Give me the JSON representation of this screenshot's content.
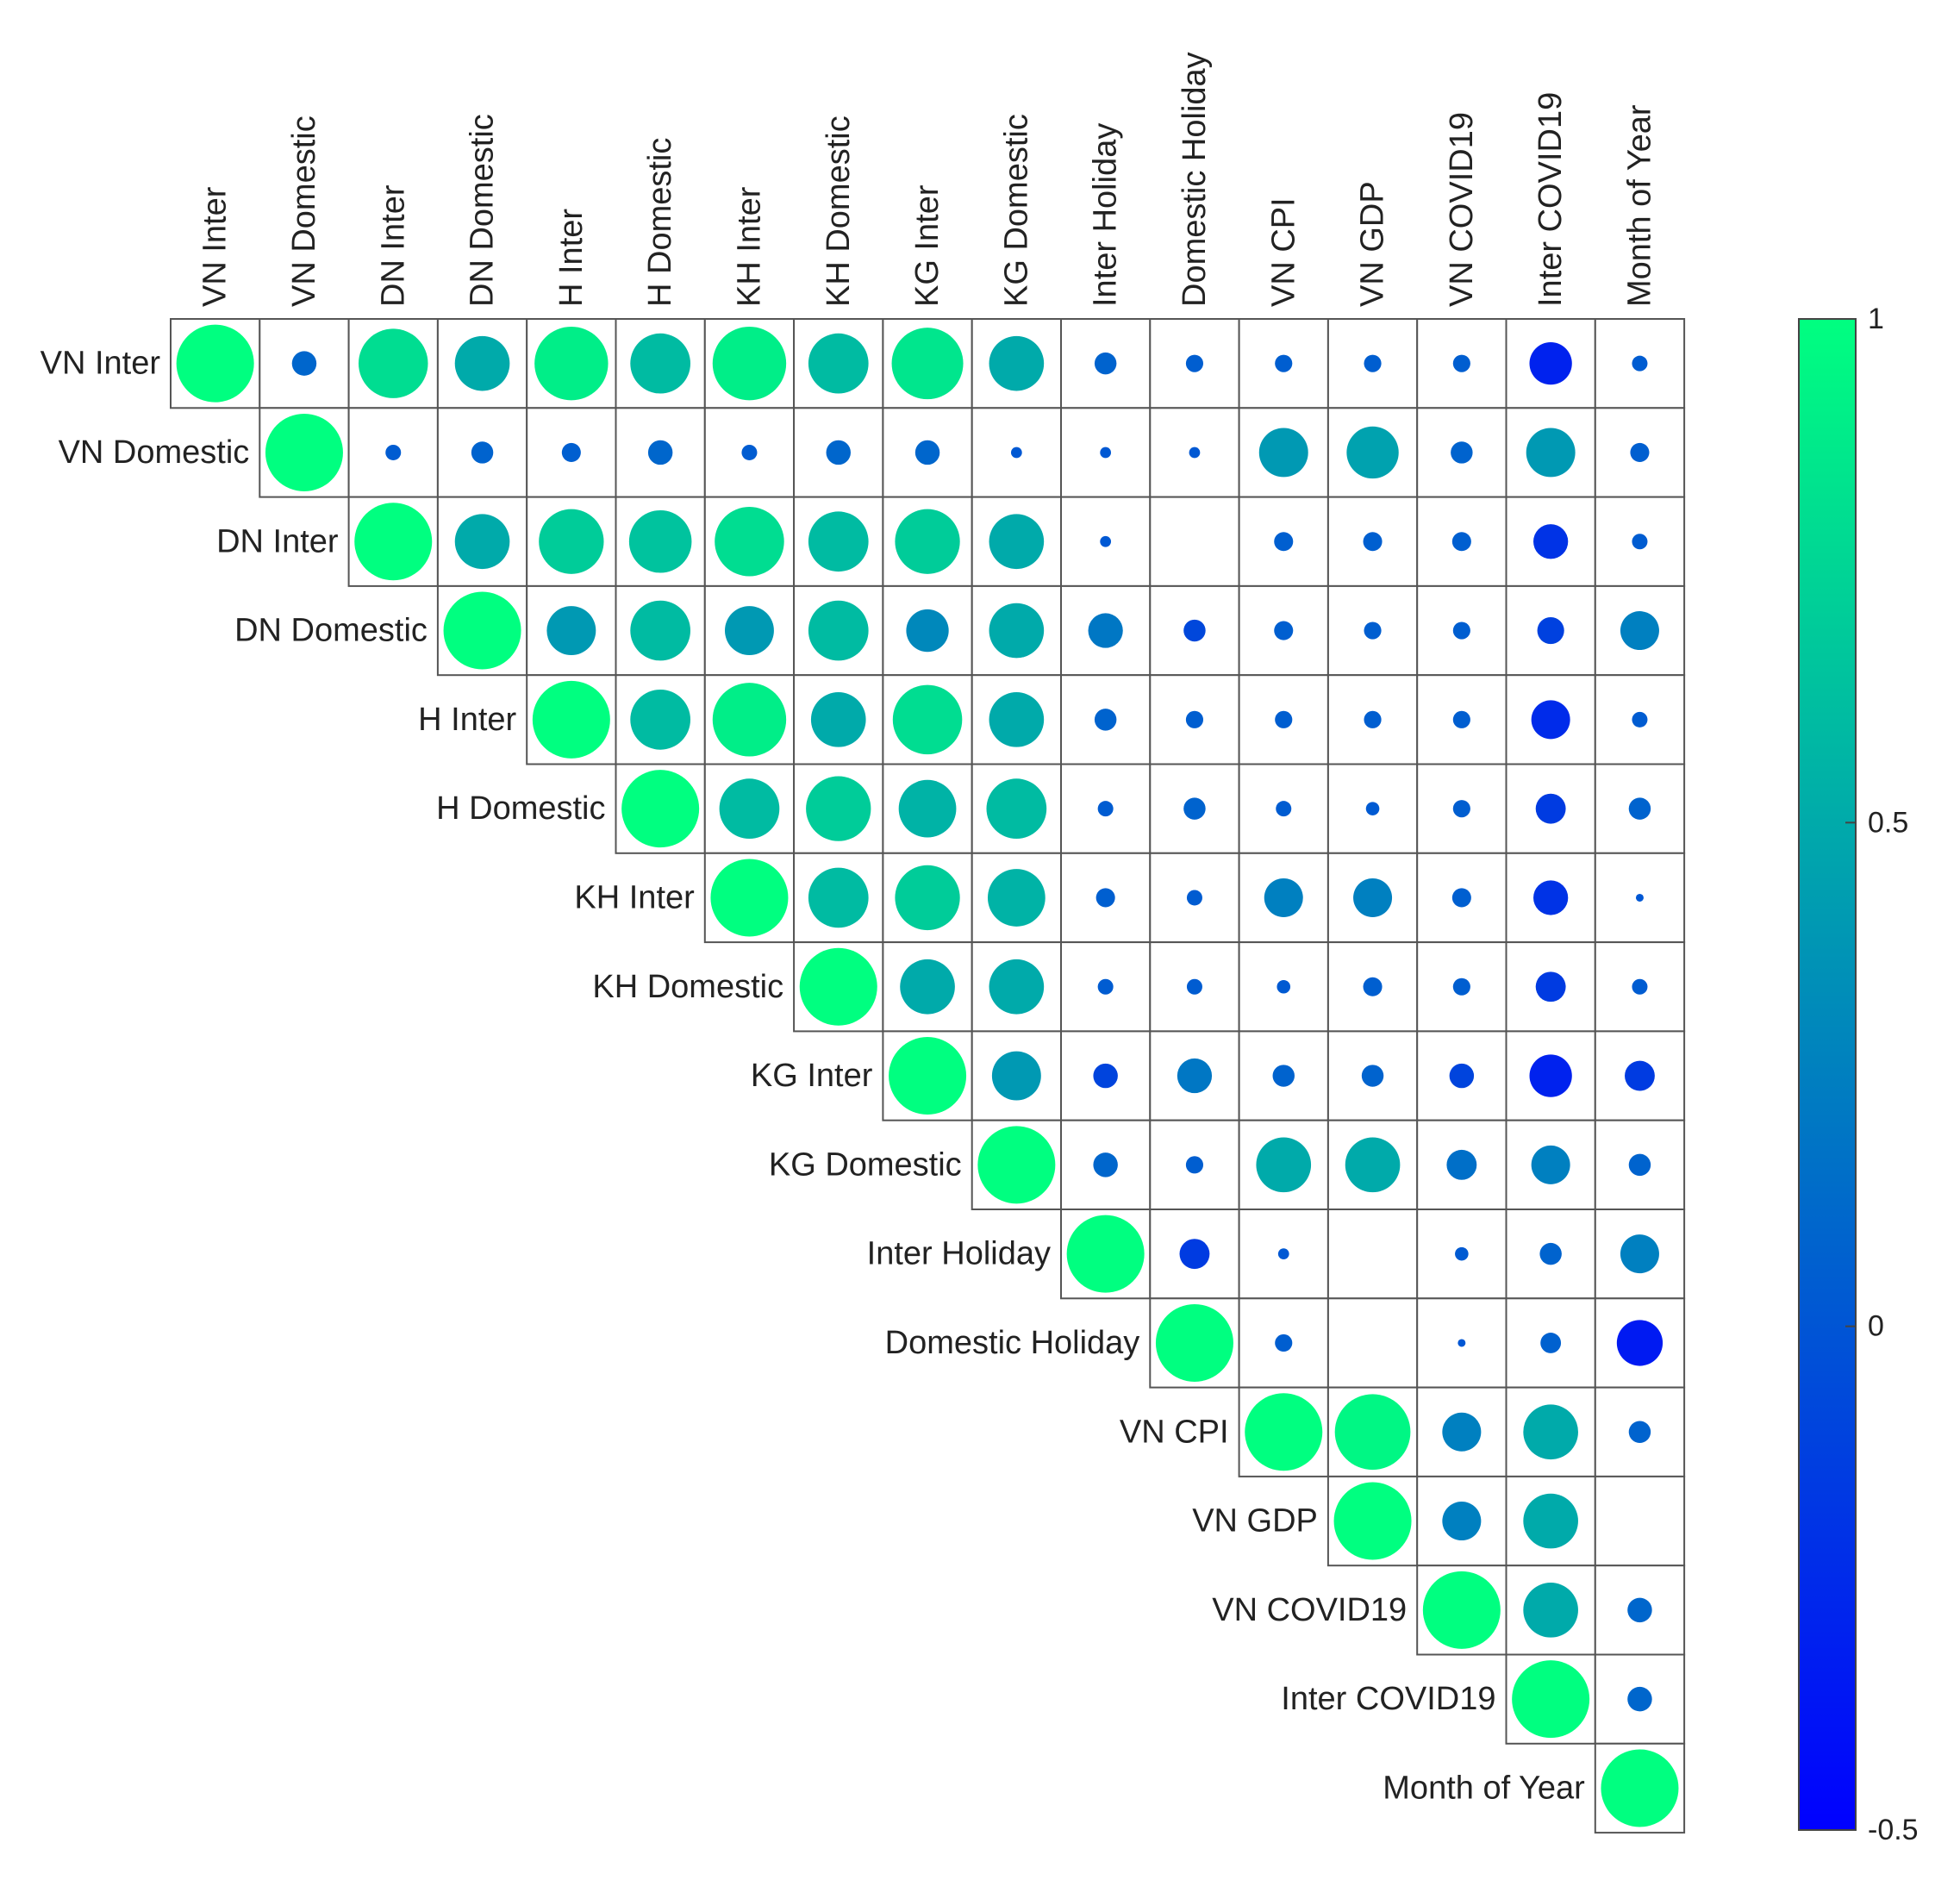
{
  "chart_data": {
    "type": "heatmap",
    "subtype": "upper-triangular correlation plot with sized circles",
    "variables": [
      "VN Inter",
      "VN Domestic",
      "DN Inter",
      "DN Domestic",
      "H Inter",
      "H Domestic",
      "KH Inter",
      "KH Domestic",
      "KG Inter",
      "KG Domestic",
      "Inter Holiday",
      "Domestic Holiday",
      "VN CPI",
      "VN GDP",
      "VN COVID19",
      "Inter COVID19",
      "Month of Year"
    ],
    "matrix": [
      [
        1.0,
        0.1,
        0.8,
        0.5,
        0.9,
        0.6,
        0.9,
        0.6,
        0.85,
        0.5,
        0.08,
        0.05,
        0.05,
        0.05,
        0.05,
        -0.3,
        0.04
      ],
      [
        null,
        1.0,
        0.04,
        0.08,
        0.06,
        0.1,
        0.04,
        0.1,
        0.1,
        0.02,
        0.02,
        0.02,
        0.4,
        0.45,
        0.08,
        0.4,
        0.06
      ],
      [
        null,
        null,
        1.0,
        0.5,
        0.7,
        0.65,
        0.8,
        0.6,
        0.7,
        0.5,
        0.02,
        0.0,
        0.06,
        0.06,
        0.06,
        -0.2,
        0.04
      ],
      [
        null,
        null,
        null,
        1.0,
        0.4,
        0.6,
        0.4,
        0.6,
        0.3,
        0.5,
        0.2,
        -0.08,
        0.06,
        0.05,
        0.05,
        -0.12,
        0.25
      ],
      [
        null,
        null,
        null,
        null,
        1.0,
        0.6,
        0.9,
        0.5,
        0.8,
        0.5,
        0.08,
        0.05,
        0.05,
        0.05,
        0.05,
        -0.25,
        0.04
      ],
      [
        null,
        null,
        null,
        null,
        null,
        1.0,
        0.6,
        0.7,
        0.55,
        0.6,
        0.04,
        0.08,
        0.04,
        0.03,
        0.05,
        -0.15,
        0.08
      ],
      [
        null,
        null,
        null,
        null,
        null,
        null,
        1.0,
        0.6,
        0.7,
        0.55,
        0.06,
        0.04,
        0.25,
        0.25,
        0.06,
        -0.2,
        0.01
      ],
      [
        null,
        null,
        null,
        null,
        null,
        null,
        null,
        1.0,
        0.5,
        0.5,
        0.04,
        0.04,
        0.03,
        0.06,
        0.05,
        -0.15,
        0.04
      ],
      [
        null,
        null,
        null,
        null,
        null,
        null,
        null,
        null,
        1.0,
        0.4,
        -0.1,
        0.2,
        0.08,
        0.08,
        -0.1,
        -0.3,
        -0.15
      ],
      [
        null,
        null,
        null,
        null,
        null,
        null,
        null,
        null,
        null,
        1.0,
        0.1,
        0.05,
        0.5,
        0.5,
        0.15,
        0.25,
        0.08
      ],
      [
        null,
        null,
        null,
        null,
        null,
        null,
        null,
        null,
        null,
        null,
        1.0,
        -0.15,
        0.02,
        null,
        0.03,
        0.08,
        0.25
      ],
      [
        null,
        null,
        null,
        null,
        null,
        null,
        null,
        null,
        null,
        null,
        null,
        1.0,
        0.05,
        null,
        0.01,
        0.07,
        -0.35
      ],
      [
        null,
        null,
        null,
        null,
        null,
        null,
        null,
        null,
        null,
        null,
        null,
        null,
        1.0,
        0.95,
        0.25,
        0.5,
        0.08
      ],
      [
        null,
        null,
        null,
        null,
        null,
        null,
        null,
        null,
        null,
        null,
        null,
        null,
        null,
        1.0,
        0.25,
        0.5,
        null
      ],
      [
        null,
        null,
        null,
        null,
        null,
        null,
        null,
        null,
        null,
        null,
        null,
        null,
        null,
        null,
        1.0,
        0.5,
        0.1
      ],
      [
        null,
        null,
        null,
        null,
        null,
        null,
        null,
        null,
        null,
        null,
        null,
        null,
        null,
        null,
        null,
        1.0,
        0.1
      ],
      [
        null,
        null,
        null,
        null,
        null,
        null,
        null,
        null,
        null,
        null,
        null,
        null,
        null,
        null,
        null,
        null,
        1.0
      ]
    ],
    "colorbar": {
      "range": [
        -0.5,
        1
      ],
      "ticks": [
        1,
        0.5,
        0,
        -0.5
      ],
      "tick_labels": [
        "1",
        "0.5",
        "0",
        "-0.5"
      ],
      "colors": [
        "#00ff80",
        "#0000ff"
      ]
    },
    "title": "",
    "xlabel": "",
    "ylabel": ""
  }
}
